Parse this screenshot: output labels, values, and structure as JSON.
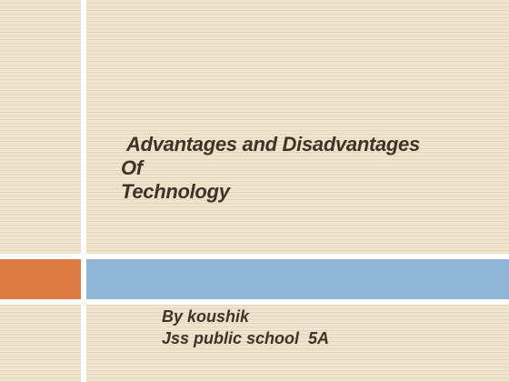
{
  "slide": {
    "title_lines": [
      "Advantages and Disadvantages",
      "Of",
      "Technology"
    ],
    "subtitle_lines": [
      "By koushik",
      "Jss public school  5A"
    ]
  },
  "colors": {
    "background": "#f1e4cf",
    "divider": "#ffffff",
    "orange_accent": "#dc7c43",
    "blue_band": "#8eb6d8",
    "text": "#3c3427"
  }
}
